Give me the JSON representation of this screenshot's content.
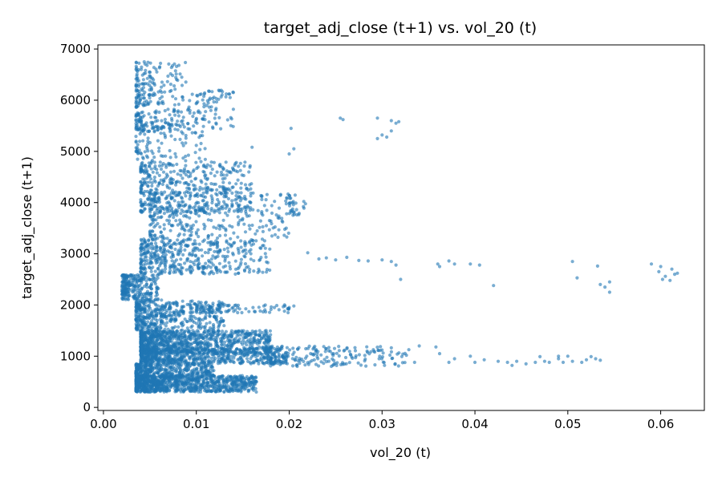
{
  "chart_data": {
    "type": "scatter",
    "title": "target_adj_close (t+1) vs. vol_20 (t)",
    "xlabel": "vol_20 (t)",
    "ylabel": "target_adj_close (t+1)",
    "xlim": [
      -0.0006,
      0.0647
    ],
    "ylim": [
      -60,
      7080
    ],
    "xticks": [
      0.0,
      0.01,
      0.02,
      0.03,
      0.04,
      0.05,
      0.06
    ],
    "xtick_labels": [
      "0.00",
      "0.01",
      "0.02",
      "0.03",
      "0.04",
      "0.05",
      "0.06"
    ],
    "yticks": [
      0,
      1000,
      2000,
      3000,
      4000,
      5000,
      6000,
      7000
    ],
    "ytick_labels": [
      "0",
      "1000",
      "2000",
      "3000",
      "4000",
      "5000",
      "6000",
      "7000"
    ],
    "grid": false,
    "marker_color": "#1f77b4",
    "marker_alpha": 0.6,
    "clusters": [
      {
        "x": [
          0.0035,
          0.0165
        ],
        "y": [
          300,
          620
        ],
        "n": 900
      },
      {
        "x": [
          0.0035,
          0.012
        ],
        "y": [
          600,
          850
        ],
        "n": 350
      },
      {
        "x": [
          0.004,
          0.02
        ],
        "y": [
          850,
          1150
        ],
        "n": 600
      },
      {
        "x": [
          0.004,
          0.018
        ],
        "y": [
          1050,
          1500
        ],
        "n": 900
      },
      {
        "x": [
          0.018,
          0.033
        ],
        "y": [
          800,
          1200
        ],
        "n": 200
      },
      {
        "x": [
          0.0035,
          0.013
        ],
        "y": [
          1500,
          2100
        ],
        "n": 450
      },
      {
        "x": [
          0.01,
          0.02
        ],
        "y": [
          1850,
          2000
        ],
        "n": 80
      },
      {
        "x": [
          0.002,
          0.006
        ],
        "y": [
          2100,
          2600
        ],
        "n": 250
      },
      {
        "x": [
          0.004,
          0.018
        ],
        "y": [
          2600,
          3300
        ],
        "n": 450
      },
      {
        "x": [
          0.005,
          0.02
        ],
        "y": [
          3300,
          4200
        ],
        "n": 300
      },
      {
        "x": [
          0.004,
          0.016
        ],
        "y": [
          3800,
          4800
        ],
        "n": 450
      },
      {
        "x": [
          0.0035,
          0.011
        ],
        "y": [
          4800,
          5600
        ],
        "n": 120
      },
      {
        "x": [
          0.0035,
          0.014
        ],
        "y": [
          5400,
          6200
        ],
        "n": 250
      },
      {
        "x": [
          0.0035,
          0.009
        ],
        "y": [
          6200,
          6750
        ],
        "n": 90
      },
      {
        "x": [
          0.02,
          0.022
        ],
        "y": [
          3750,
          4150
        ],
        "n": 30
      }
    ],
    "points": [
      [
        0.0255,
        5650
      ],
      [
        0.0258,
        5620
      ],
      [
        0.0295,
        5650
      ],
      [
        0.031,
        5600
      ],
      [
        0.0315,
        5550
      ],
      [
        0.03,
        5320
      ],
      [
        0.0305,
        5280
      ],
      [
        0.0295,
        5250
      ],
      [
        0.031,
        5400
      ],
      [
        0.0318,
        5580
      ],
      [
        0.0202,
        5450
      ],
      [
        0.0205,
        5050
      ],
      [
        0.02,
        4950
      ],
      [
        0.016,
        5080
      ],
      [
        0.022,
        3020
      ],
      [
        0.0232,
        2900
      ],
      [
        0.024,
        2920
      ],
      [
        0.025,
        2880
      ],
      [
        0.0262,
        2930
      ],
      [
        0.0275,
        2870
      ],
      [
        0.0285,
        2860
      ],
      [
        0.03,
        2880
      ],
      [
        0.031,
        2850
      ],
      [
        0.0315,
        2780
      ],
      [
        0.032,
        2500
      ],
      [
        0.036,
        2800
      ],
      [
        0.0362,
        2750
      ],
      [
        0.0372,
        2860
      ],
      [
        0.0378,
        2800
      ],
      [
        0.0395,
        2800
      ],
      [
        0.0405,
        2780
      ],
      [
        0.042,
        2380
      ],
      [
        0.0505,
        2850
      ],
      [
        0.051,
        2530
      ],
      [
        0.0532,
        2760
      ],
      [
        0.0535,
        2400
      ],
      [
        0.054,
        2350
      ],
      [
        0.0545,
        2450
      ],
      [
        0.0545,
        2250
      ],
      [
        0.059,
        2800
      ],
      [
        0.0598,
        2650
      ],
      [
        0.06,
        2750
      ],
      [
        0.0602,
        2500
      ],
      [
        0.0605,
        2560
      ],
      [
        0.061,
        2480
      ],
      [
        0.0612,
        2700
      ],
      [
        0.0615,
        2600
      ],
      [
        0.0618,
        2620
      ],
      [
        0.0205,
        1980
      ],
      [
        0.02,
        1950
      ],
      [
        0.0195,
        2000
      ],
      [
        0.0335,
        880
      ],
      [
        0.034,
        1200
      ],
      [
        0.0358,
        1180
      ],
      [
        0.0362,
        1050
      ],
      [
        0.0372,
        880
      ],
      [
        0.0378,
        950
      ],
      [
        0.0395,
        1000
      ],
      [
        0.04,
        880
      ],
      [
        0.041,
        930
      ],
      [
        0.0425,
        900
      ],
      [
        0.0435,
        880
      ],
      [
        0.044,
        820
      ],
      [
        0.0445,
        900
      ],
      [
        0.0455,
        850
      ],
      [
        0.0465,
        880
      ],
      [
        0.0475,
        900
      ],
      [
        0.048,
        880
      ],
      [
        0.049,
        950
      ],
      [
        0.0495,
        880
      ],
      [
        0.0505,
        900
      ],
      [
        0.0515,
        880
      ],
      [
        0.052,
        930
      ],
      [
        0.053,
        950
      ],
      [
        0.0535,
        920
      ],
      [
        0.047,
        990
      ],
      [
        0.049,
        1000
      ],
      [
        0.05,
        1000
      ],
      [
        0.0525,
        990
      ]
    ]
  }
}
